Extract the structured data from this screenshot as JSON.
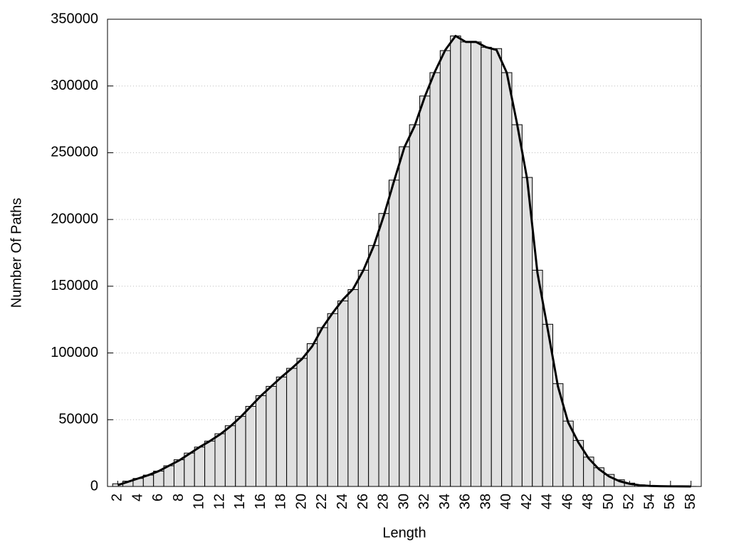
{
  "chart_data": {
    "type": "bar",
    "x": [
      2,
      3,
      4,
      5,
      6,
      7,
      8,
      9,
      10,
      11,
      12,
      13,
      14,
      15,
      16,
      17,
      18,
      19,
      20,
      21,
      22,
      23,
      24,
      25,
      26,
      27,
      28,
      29,
      30,
      31,
      32,
      33,
      34,
      35,
      36,
      37,
      38,
      39,
      40,
      41,
      42,
      43,
      44,
      45,
      46,
      47,
      48,
      49,
      50,
      51,
      52,
      53,
      54,
      55,
      56,
      57,
      58
    ],
    "series": [
      {
        "type": "bar",
        "color": "#e0e0e0",
        "values": [
          2000,
          4000,
          6000,
          8500,
          11500,
          15500,
          20000,
          25000,
          29500,
          34000,
          39500,
          45500,
          52500,
          60000,
          68000,
          75000,
          82000,
          88500,
          96000,
          107000,
          119000,
          129500,
          139000,
          147500,
          162000,
          180500,
          204500,
          229500,
          254500,
          271000,
          292500,
          310000,
          326500,
          337500,
          333000,
          333000,
          329000,
          328000,
          310000,
          271000,
          231500,
          162000,
          121500,
          77000,
          49000,
          34500,
          22000,
          14000,
          9000,
          5000,
          2500,
          1200,
          600,
          300,
          150,
          80,
          40
        ]
      },
      {
        "type": "line",
        "color": "#000000",
        "values": [
          1000,
          3500,
          6000,
          8500,
          11500,
          15500,
          19500,
          24500,
          29500,
          34000,
          39000,
          45000,
          52000,
          60000,
          68000,
          75000,
          82000,
          88500,
          95500,
          105000,
          119000,
          130000,
          140000,
          148000,
          162000,
          180000,
          203000,
          229000,
          254000,
          270000,
          292000,
          311000,
          327000,
          337500,
          333000,
          333000,
          329000,
          327000,
          310000,
          272000,
          230000,
          160000,
          118000,
          75000,
          48000,
          33000,
          21000,
          13000,
          7500,
          4000,
          2000,
          900,
          400,
          200,
          100,
          50,
          0
        ]
      }
    ],
    "xlabel": "Length",
    "ylabel": "Number Of Paths",
    "xlim": [
      1,
      59
    ],
    "xticks": [
      2,
      4,
      6,
      8,
      10,
      12,
      14,
      16,
      18,
      20,
      22,
      24,
      26,
      28,
      30,
      32,
      34,
      36,
      38,
      40,
      42,
      44,
      46,
      48,
      50,
      52,
      54,
      56,
      58
    ],
    "ylim": [
      0,
      350000
    ],
    "yticks": [
      0,
      50000,
      100000,
      150000,
      200000,
      250000,
      300000,
      350000
    ],
    "grid": true
  }
}
